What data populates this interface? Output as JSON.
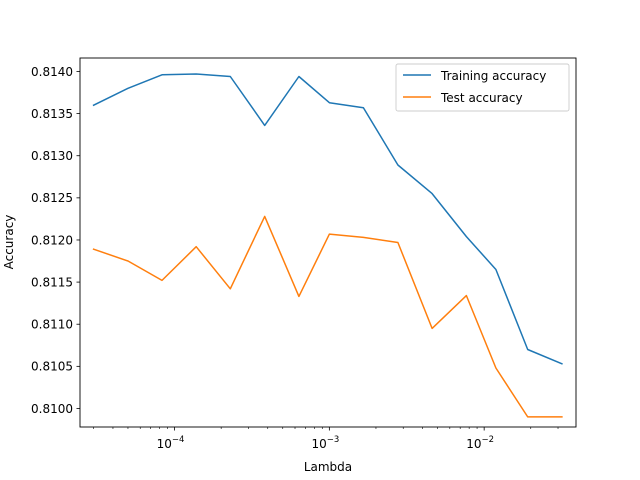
{
  "chart_data": {
    "type": "line",
    "x_scale": "log",
    "xlabel": "Lambda",
    "ylabel": "Accuracy",
    "xlim": [
      2.45e-05,
      0.0392
    ],
    "ylim": [
      0.80978,
      0.81416
    ],
    "x_ticks": [
      {
        "value": 0.0001,
        "base": "10",
        "exp": "−4"
      },
      {
        "value": 0.001,
        "base": "10",
        "exp": "−3"
      },
      {
        "value": 0.01,
        "base": "10",
        "exp": "−2"
      }
    ],
    "y_ticks": [
      {
        "value": 0.81,
        "label": "0.8100"
      },
      {
        "value": 0.8105,
        "label": "0.8105"
      },
      {
        "value": 0.811,
        "label": "0.8110"
      },
      {
        "value": 0.8115,
        "label": "0.8115"
      },
      {
        "value": 0.812,
        "label": "0.8120"
      },
      {
        "value": 0.8125,
        "label": "0.8125"
      },
      {
        "value": 0.813,
        "label": "0.8130"
      },
      {
        "value": 0.8135,
        "label": "0.8135"
      },
      {
        "value": 0.814,
        "label": "0.8140"
      }
    ],
    "grid": false,
    "legend_position": "top-right",
    "x": [
      3e-05,
      5e-05,
      8.3e-05,
      0.000138,
      0.000229,
      0.000382,
      0.000636,
      0.001,
      0.00166,
      0.00277,
      0.00461,
      0.00768,
      0.0119,
      0.0191,
      0.0318
    ],
    "series": [
      {
        "name": "Training accuracy",
        "color": "#1f77b4",
        "values": [
          0.8136,
          0.8138,
          0.81396,
          0.81397,
          0.81394,
          0.81336,
          0.81394,
          0.81363,
          0.81357,
          0.81289,
          0.81255,
          0.81204,
          0.81165,
          0.8107,
          0.81053
        ]
      },
      {
        "name": "Test accuracy",
        "color": "#ff7f0e",
        "values": [
          0.81189,
          0.81175,
          0.81152,
          0.81192,
          0.81142,
          0.81228,
          0.81133,
          0.81207,
          0.81203,
          0.81197,
          0.81095,
          0.81134,
          0.81048,
          0.8099,
          0.8099
        ]
      }
    ]
  }
}
